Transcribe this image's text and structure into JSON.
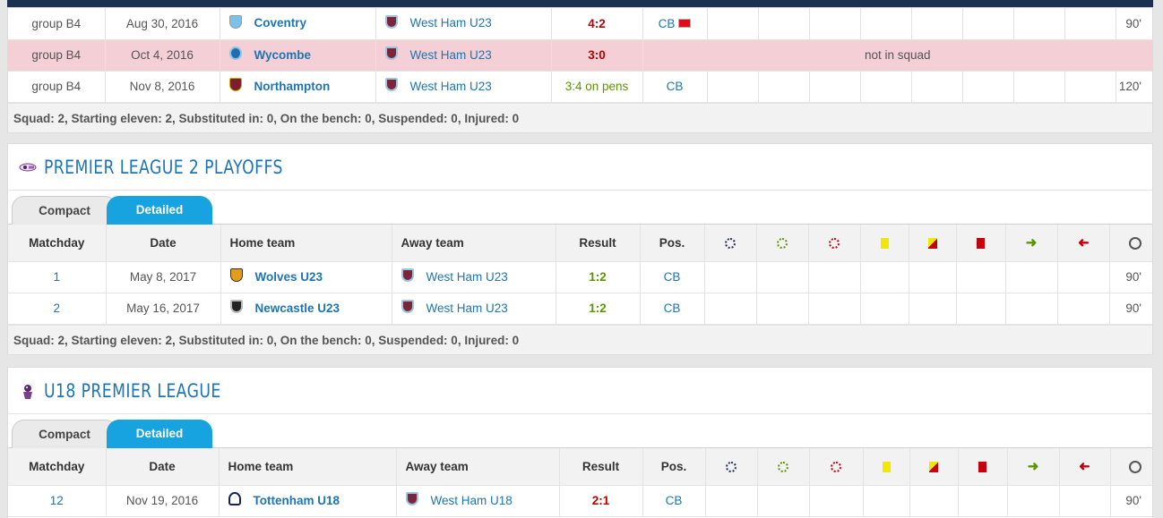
{
  "first_table": {
    "rows": [
      {
        "matchday": "group B4",
        "date": "Aug 30, 2016",
        "home": "Coventry",
        "home_crest": "coventry-crest",
        "away": "West Ham U23",
        "result": "4:2",
        "result_style": "red",
        "pos": "CB",
        "minutes": "90'",
        "note": ""
      },
      {
        "matchday": "group B4",
        "date": "Oct 4, 2016",
        "home": "Wycombe",
        "home_crest": "wycombe-crest",
        "away": "West Ham U23",
        "result": "3:0",
        "result_style": "red",
        "pos": "",
        "minutes": "",
        "note": "not in squad"
      },
      {
        "matchday": "group B4",
        "date": "Nov 8, 2016",
        "home": "Northampton",
        "home_crest": "northampton-crest",
        "away": "West Ham U23",
        "result": "3:4 on pens",
        "result_style": "green",
        "pos": "CB",
        "minutes": "120'",
        "note": ""
      }
    ],
    "summary": "Squad: 2, Starting eleven: 2, Substituted in: 0, On the bench: 0, Suspended: 0, Injured: 0"
  },
  "section_pl2": {
    "title": "PREMIER LEAGUE 2 PLAYOFFS",
    "tabs": {
      "compact": "Compact",
      "detailed": "Detailed"
    },
    "headers": {
      "matchday": "Matchday",
      "date": "Date",
      "home": "Home team",
      "away": "Away team",
      "result": "Result",
      "pos": "Pos."
    },
    "rows": [
      {
        "matchday": "1",
        "date": "May 8, 2017",
        "home": "Wolves U23",
        "away": "West Ham U23",
        "result": "1:2",
        "pos": "CB",
        "minutes": "90'"
      },
      {
        "matchday": "2",
        "date": "May 16, 2017",
        "home": "Newcastle U23",
        "away": "West Ham U23",
        "result": "1:2",
        "pos": "CB",
        "minutes": "90'"
      }
    ],
    "summary": "Squad: 2, Starting eleven: 2, Substituted in: 0, On the bench: 0, Suspended: 0, Injured: 0"
  },
  "section_u18": {
    "title": "U18 PREMIER LEAGUE",
    "tabs": {
      "compact": "Compact",
      "detailed": "Detailed"
    },
    "headers": {
      "matchday": "Matchday",
      "date": "Date",
      "home": "Home team",
      "away": "Away team",
      "result": "Result",
      "pos": "Pos."
    },
    "rows": [
      {
        "matchday": "12",
        "date": "Nov 19, 2016",
        "home": "Tottenham U18",
        "away": "West Ham U18",
        "result": "2:1",
        "pos": "CB",
        "minutes": "90'"
      }
    ]
  },
  "colors": {
    "link": "#1d75b3",
    "loss": "#b80000",
    "win": "#5b9500",
    "tab_active": "#17a2e0",
    "highlight_row": "#f4cfd5"
  }
}
